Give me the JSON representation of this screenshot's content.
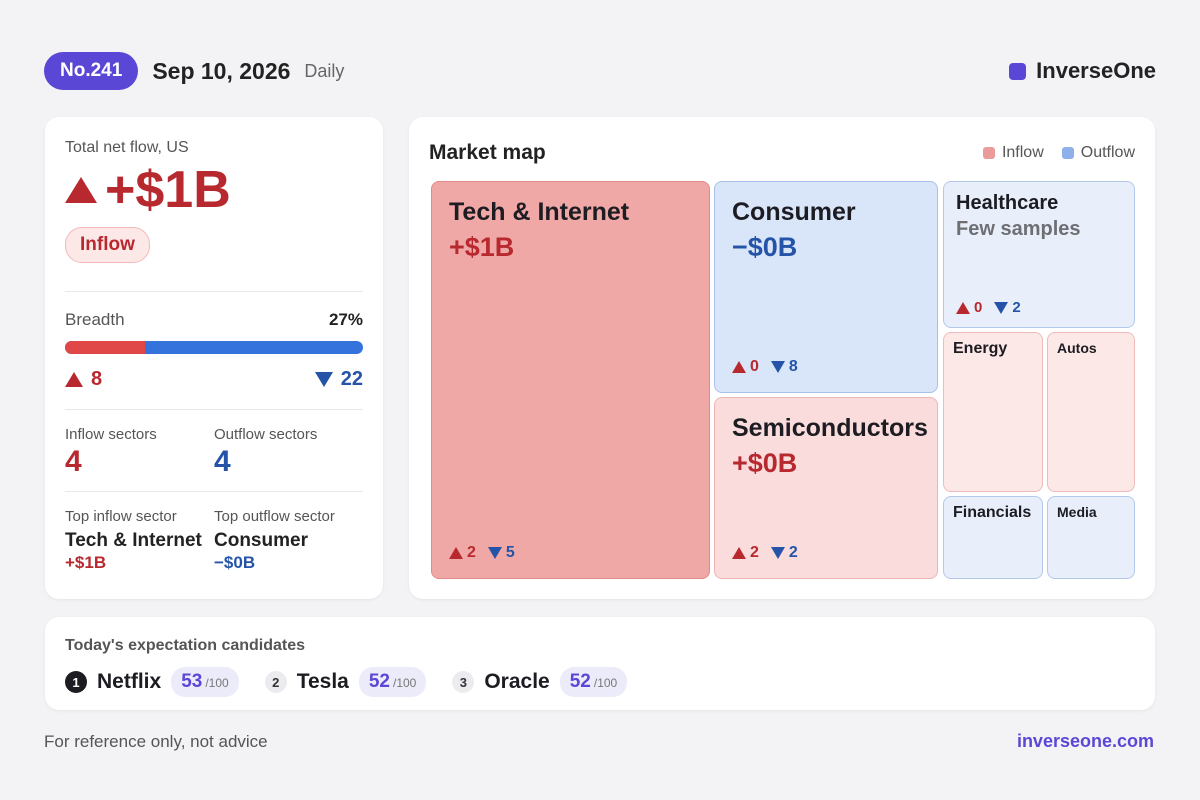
{
  "header": {
    "issue": "No.241",
    "date": "Sep 10, 2026",
    "frequency": "Daily",
    "brand": "InverseOne"
  },
  "summary": {
    "label": "Total net flow, US",
    "value": "+$1B",
    "status": "Inflow",
    "breadth_label": "Breadth",
    "breadth_pct": "27%",
    "breadth_fraction": 0.27,
    "up_count": "8",
    "down_count": "22",
    "inflow_sectors_label": "Inflow sectors",
    "inflow_sectors": "4",
    "outflow_sectors_label": "Outflow sectors",
    "outflow_sectors": "4",
    "top_inflow_label": "Top inflow sector",
    "top_inflow_name": "Tech & Internet",
    "top_inflow_value": "+$1B",
    "top_outflow_label": "Top outflow sector",
    "top_outflow_name": "Consumer",
    "top_outflow_value": "−$0B"
  },
  "map": {
    "title": "Market map",
    "legend_inflow": "Inflow",
    "legend_outflow": "Outflow",
    "colors": {
      "inflow_strong": "#f0a8a6",
      "inflow_light": "#fce8e7",
      "inflow_mid": "#f9dcdb",
      "outflow_strong": "#d9e6fa",
      "outflow_light": "#e8effb",
      "legend_inflow": "#ec9b9b",
      "legend_outflow": "#8fb0e8"
    },
    "tiles": {
      "tech": {
        "name": "Tech & Internet",
        "value": "+$1B",
        "up": "2",
        "down": "5"
      },
      "consumer": {
        "name": "Consumer",
        "value": "−$0B",
        "up": "0",
        "down": "8"
      },
      "semis": {
        "name": "Semiconductors",
        "value": "+$0B",
        "up": "2",
        "down": "2"
      },
      "healthcare": {
        "name": "Healthcare",
        "note": "Few samples",
        "up": "0",
        "down": "2"
      },
      "energy": {
        "name": "Energy"
      },
      "autos": {
        "name": "Autos"
      },
      "financials": {
        "name": "Financials"
      },
      "media": {
        "name": "Media"
      }
    }
  },
  "candidates": {
    "title": "Today's expectation candidates",
    "items": [
      {
        "rank": "1",
        "name": "Netflix",
        "score": "53",
        "max": "/100"
      },
      {
        "rank": "2",
        "name": "Tesla",
        "score": "52",
        "max": "/100"
      },
      {
        "rank": "3",
        "name": "Oracle",
        "score": "52",
        "max": "/100"
      }
    ]
  },
  "footer": {
    "note": "For reference only, not advice",
    "link": "inverseone.com"
  }
}
